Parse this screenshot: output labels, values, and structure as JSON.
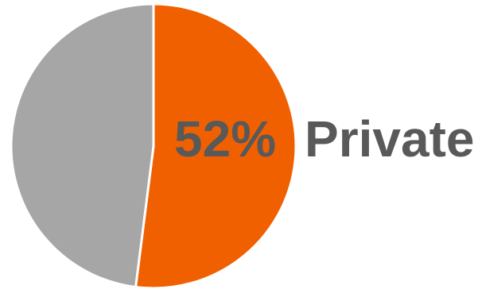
{
  "chart_data": {
    "type": "pie",
    "slices": [
      {
        "value": 52,
        "color": "#F06000"
      },
      {
        "value": 48,
        "color": "#A6A6A6"
      }
    ],
    "data_label": "52%",
    "category_label": "Private",
    "label_color": "#595959",
    "separator_color": "#FFFFFF"
  }
}
